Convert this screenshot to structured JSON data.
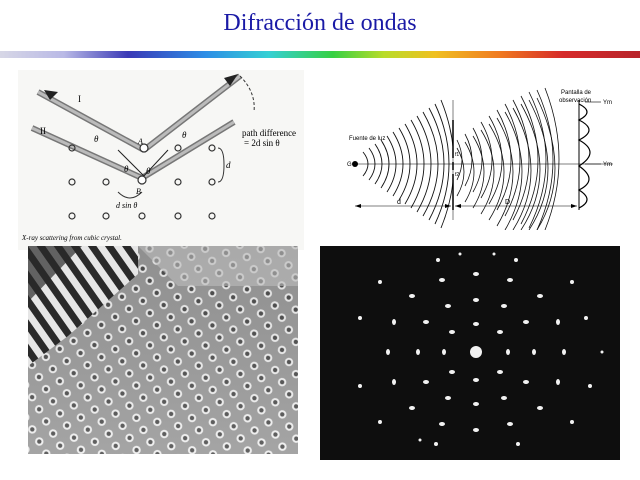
{
  "slide": {
    "title": "Difracción de ondas"
  },
  "bragg_figure": {
    "beam_1_label": "I",
    "beam_2_label": "II",
    "theta": "θ",
    "point_a": "A",
    "point_b": "B",
    "path_diff_label_1": "path difference",
    "path_diff_label_2": "= 2d sin θ",
    "d_label": "d",
    "d_sin_label": "d sin θ",
    "caption": "X-ray scattering from cubic crystal."
  },
  "double_slit_figure": {
    "source_label": "Fuente de luz",
    "screen_label_1": "Pantalla de",
    "screen_label_2": "observación",
    "point_g": "G",
    "slit_1": "f1",
    "slit_2": "f2",
    "ym_top": "Ym",
    "ym_mid": "Ym",
    "distance_d": "d",
    "distance_D": "D"
  },
  "photos": {
    "ripple_tank": "ripple-tank-interference-photo",
    "laue_pattern": "electron-diffraction-pattern-photo"
  }
}
